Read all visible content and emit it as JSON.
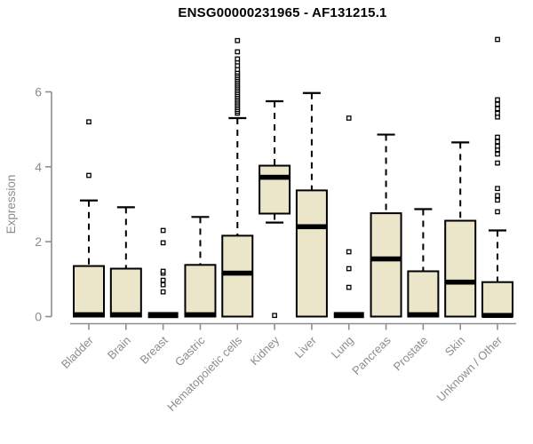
{
  "page": {
    "title": "ENSG00000231965 - AF131215.1"
  },
  "chart_data": {
    "type": "boxplot",
    "title": "ENSG00000231965 - AF131215.1",
    "ylabel": "Expression",
    "xlabel": "",
    "yticks": [
      0,
      2,
      4,
      6
    ],
    "ylim": [
      0,
      7.6
    ],
    "grid": false,
    "legend": false,
    "colors": {
      "box_fill": "#ebe5c9",
      "box_stroke": "#000000",
      "median": "#000000",
      "axis": "#8e8e8e",
      "axis_text": "#8c8c8c",
      "title_text": "#000000"
    },
    "categories": [
      "Bladder",
      "Brain",
      "Breast",
      "Gastric",
      "Hematopoietic cells",
      "Kidney",
      "Liver",
      "Lung",
      "Pancreas",
      "Prostate",
      "Skin",
      "Unknown / Other"
    ],
    "boxes": [
      {
        "label": "Bladder",
        "whisker_low": 0,
        "q1": 0,
        "median": 0.05,
        "q3": 1.35,
        "whisker_high": 3.1,
        "outliers": [
          3.77,
          5.2
        ]
      },
      {
        "label": "Brain",
        "whisker_low": 0,
        "q1": 0,
        "median": 0.05,
        "q3": 1.28,
        "whisker_high": 2.92,
        "outliers": []
      },
      {
        "label": "Breast",
        "whisker_low": 0,
        "q1": 0,
        "median": 0.04,
        "q3": 0.04,
        "whisker_high": 0.04,
        "outliers": [
          0.66,
          0.85,
          0.97,
          1.16,
          1.21,
          1.97,
          2.3
        ]
      },
      {
        "label": "Gastric",
        "whisker_low": 0,
        "q1": 0,
        "median": 0.05,
        "q3": 1.38,
        "whisker_high": 2.66,
        "outliers": []
      },
      {
        "label": "Hematopoietic cells",
        "whisker_low": 0,
        "q1": 0,
        "median": 1.16,
        "q3": 2.16,
        "whisker_high": 5.3,
        "outliers": [
          5.43,
          5.48,
          5.53,
          5.58,
          5.63,
          5.68,
          5.73,
          5.78,
          5.83,
          5.88,
          5.93,
          5.98,
          6.03,
          6.08,
          6.13,
          6.18,
          6.23,
          6.28,
          6.33,
          6.38,
          6.43,
          6.48,
          6.53,
          6.6,
          6.7,
          6.8,
          6.88,
          7.07,
          7.37
        ]
      },
      {
        "label": "Kidney",
        "whisker_low": 2.51,
        "q1": 2.75,
        "median": 3.72,
        "q3": 4.03,
        "whisker_high": 5.75,
        "outliers": [
          0.03
        ]
      },
      {
        "label": "Liver",
        "whisker_low": 0,
        "q1": 0,
        "median": 2.4,
        "q3": 3.37,
        "whisker_high": 5.97,
        "outliers": []
      },
      {
        "label": "Lung",
        "whisker_low": 0,
        "q1": 0,
        "median": 0.04,
        "q3": 0.04,
        "whisker_high": 0.04,
        "outliers": [
          0.78,
          1.28,
          1.73,
          5.3
        ]
      },
      {
        "label": "Pancreas",
        "whisker_low": 0,
        "q1": 0,
        "median": 1.54,
        "q3": 2.76,
        "whisker_high": 4.86,
        "outliers": []
      },
      {
        "label": "Prostate",
        "whisker_low": 0,
        "q1": 0,
        "median": 0.05,
        "q3": 1.21,
        "whisker_high": 2.87,
        "outliers": []
      },
      {
        "label": "Skin",
        "whisker_low": 0,
        "q1": 0,
        "median": 0.92,
        "q3": 2.56,
        "whisker_high": 4.65,
        "outliers": []
      },
      {
        "label": "Unknown / Other",
        "whisker_low": 0,
        "q1": 0,
        "median": 0.03,
        "q3": 0.92,
        "whisker_high": 2.3,
        "outliers": [
          2.8,
          3.11,
          3.23,
          3.42,
          4.1,
          4.34,
          4.46,
          4.55,
          4.67,
          4.79,
          5.33,
          5.43,
          5.55,
          5.67,
          5.79,
          7.4
        ]
      }
    ]
  }
}
